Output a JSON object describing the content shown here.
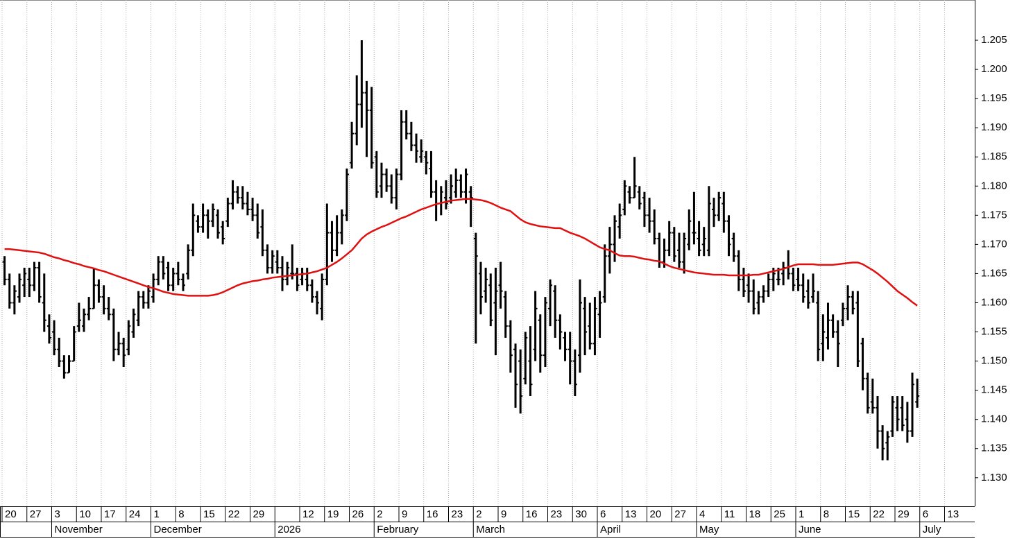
{
  "chart_data": {
    "type": "ohlc",
    "bar_color": "#000000",
    "grid": true,
    "ylim": [
      1.1251,
      1.2119
    ],
    "yticks": [
      {
        "value": 1.13,
        "label": "1.130"
      },
      1.135,
      {
        "value": 1.14,
        "label": "1.140"
      },
      1.145,
      {
        "value": 1.15,
        "label": "1.150"
      },
      1.155,
      {
        "value": 1.16,
        "label": "1.160"
      },
      1.165,
      {
        "value": 1.17,
        "label": "1.170"
      },
      1.175,
      {
        "value": 1.18,
        "label": "1.180"
      },
      1.185,
      {
        "value": 1.19,
        "label": "1.190"
      },
      1.195,
      {
        "value": 1.2,
        "label": "1.200"
      },
      1.205
    ],
    "week_labels": [
      "20",
      "27",
      "3",
      "10",
      "17",
      "24",
      "1",
      "8",
      "15",
      "22",
      "29",
      null,
      "12",
      "19",
      "26",
      "2",
      "9",
      "16",
      "23",
      "2",
      "9",
      "16",
      "23",
      "30",
      "6",
      "13",
      "20",
      "27",
      "4",
      "11",
      "18",
      "25",
      "1",
      "8",
      "15",
      "22",
      "29",
      "6",
      "13"
    ],
    "month_labels": [
      null,
      null,
      "November",
      null,
      null,
      null,
      "December",
      null,
      null,
      null,
      null,
      "2026",
      null,
      null,
      null,
      "February",
      null,
      null,
      null,
      "March",
      null,
      null,
      null,
      null,
      "April",
      null,
      null,
      null,
      "May",
      null,
      null,
      null,
      "June",
      null,
      null,
      null,
      null,
      "July",
      null
    ],
    "open": [
      1.167,
      1.164,
      1.16,
      1.161,
      1.163,
      1.164,
      1.163,
      1.166,
      1.16,
      1.156,
      1.155,
      1.152,
      1.15,
      1.148,
      1.15,
      1.156,
      1.156,
      1.158,
      1.159,
      1.163,
      1.161,
      1.159,
      1.158,
      1.152,
      1.153,
      1.152,
      1.155,
      1.157,
      1.161,
      1.16,
      1.161,
      1.164,
      1.167,
      1.166,
      1.163,
      1.165,
      1.164,
      1.165,
      1.169,
      1.174,
      1.173,
      1.175,
      1.174,
      1.175,
      1.173,
      1.174,
      1.177,
      1.179,
      1.178,
      1.177,
      1.176,
      1.175,
      1.173,
      1.169,
      1.166,
      1.167,
      1.166,
      1.164,
      1.165,
      1.165,
      1.164,
      1.164,
      1.163,
      1.161,
      1.159,
      1.164,
      1.172,
      1.169,
      1.172,
      1.175,
      1.184,
      1.189,
      1.194,
      1.196,
      1.193,
      1.185,
      1.18,
      1.182,
      1.18,
      1.178,
      1.182,
      1.191,
      1.189,
      1.187,
      1.185,
      1.185,
      1.183,
      1.179,
      1.177,
      1.178,
      1.178,
      1.179,
      1.181,
      1.179,
      1.179,
      1.171,
      1.165,
      1.162,
      1.163,
      1.16,
      1.163,
      1.161,
      1.156,
      1.152,
      1.15,
      1.147,
      1.15,
      1.152,
      1.157,
      1.151,
      1.159,
      1.162,
      1.157,
      1.154,
      1.152,
      1.15,
      1.151,
      1.159,
      1.156,
      1.153,
      1.158,
      1.161,
      1.168,
      1.17,
      1.173,
      1.176,
      1.179,
      1.178,
      1.179,
      1.178,
      1.175,
      1.174,
      1.171,
      1.167,
      1.169,
      1.172,
      1.169,
      1.167,
      1.17,
      1.172,
      1.171,
      1.17,
      1.169,
      1.176,
      1.175,
      1.177,
      1.174,
      1.171,
      1.168,
      1.164,
      1.163,
      1.162,
      1.16,
      1.161,
      1.162,
      1.164,
      1.164,
      1.165,
      1.166,
      1.165,
      1.164,
      1.163,
      1.162,
      1.161,
      1.16,
      1.153,
      1.154,
      1.157,
      1.155,
      1.157,
      1.159,
      1.161,
      1.16,
      1.153,
      1.147,
      1.143,
      1.142,
      1.138,
      1.136,
      1.138,
      1.142,
      1.142,
      1.14,
      1.138,
      1.143
    ],
    "high": [
      1.168,
      1.165,
      1.163,
      1.165,
      1.166,
      1.166,
      1.167,
      1.167,
      1.165,
      1.158,
      1.157,
      1.154,
      1.151,
      1.151,
      1.156,
      1.16,
      1.159,
      1.161,
      1.166,
      1.164,
      1.163,
      1.161,
      1.159,
      1.155,
      1.154,
      1.157,
      1.159,
      1.162,
      1.162,
      1.163,
      1.165,
      1.168,
      1.168,
      1.167,
      1.166,
      1.167,
      1.165,
      1.17,
      1.177,
      1.175,
      1.177,
      1.176,
      1.177,
      1.176,
      1.174,
      1.178,
      1.181,
      1.18,
      1.18,
      1.179,
      1.178,
      1.177,
      1.176,
      1.17,
      1.169,
      1.169,
      1.168,
      1.167,
      1.17,
      1.166,
      1.166,
      1.166,
      1.164,
      1.162,
      1.165,
      1.177,
      1.174,
      1.175,
      1.176,
      1.183,
      1.191,
      1.199,
      1.205,
      1.198,
      1.197,
      1.186,
      1.184,
      1.183,
      1.182,
      1.183,
      1.193,
      1.193,
      1.191,
      1.189,
      1.188,
      1.186,
      1.186,
      1.181,
      1.18,
      1.181,
      1.182,
      1.183,
      1.182,
      1.183,
      1.18,
      1.172,
      1.167,
      1.166,
      1.165,
      1.166,
      1.167,
      1.162,
      1.157,
      1.153,
      1.152,
      1.155,
      1.156,
      1.162,
      1.158,
      1.161,
      1.164,
      1.163,
      1.158,
      1.155,
      1.155,
      1.152,
      1.164,
      1.161,
      1.16,
      1.161,
      1.162,
      1.17,
      1.173,
      1.175,
      1.177,
      1.181,
      1.18,
      1.185,
      1.18,
      1.179,
      1.178,
      1.176,
      1.172,
      1.171,
      1.174,
      1.173,
      1.172,
      1.172,
      1.176,
      1.179,
      1.174,
      1.173,
      1.18,
      1.178,
      1.179,
      1.179,
      1.175,
      1.172,
      1.169,
      1.166,
      1.165,
      1.164,
      1.162,
      1.163,
      1.165,
      1.166,
      1.166,
      1.167,
      1.169,
      1.166,
      1.166,
      1.165,
      1.164,
      1.165,
      1.162,
      1.158,
      1.16,
      1.158,
      1.157,
      1.16,
      1.163,
      1.162,
      1.162,
      1.154,
      1.148,
      1.147,
      1.144,
      1.139,
      1.138,
      1.144,
      1.144,
      1.144,
      1.143,
      1.148,
      1.147
    ],
    "low": [
      1.163,
      1.159,
      1.158,
      1.16,
      1.161,
      1.161,
      1.162,
      1.16,
      1.155,
      1.153,
      1.151,
      1.149,
      1.147,
      1.148,
      1.15,
      1.155,
      1.155,
      1.157,
      1.159,
      1.16,
      1.158,
      1.157,
      1.15,
      1.151,
      1.149,
      1.151,
      1.154,
      1.156,
      1.159,
      1.159,
      1.16,
      1.163,
      1.164,
      1.162,
      1.162,
      1.163,
      1.162,
      1.164,
      1.168,
      1.172,
      1.172,
      1.171,
      1.173,
      1.171,
      1.17,
      1.173,
      1.176,
      1.177,
      1.176,
      1.175,
      1.174,
      1.171,
      1.168,
      1.165,
      1.165,
      1.165,
      1.162,
      1.163,
      1.164,
      1.162,
      1.163,
      1.162,
      1.16,
      1.158,
      1.157,
      1.163,
      1.167,
      1.168,
      1.17,
      1.174,
      1.183,
      1.187,
      1.19,
      1.185,
      1.183,
      1.178,
      1.178,
      1.179,
      1.177,
      1.176,
      1.181,
      1.188,
      1.186,
      1.184,
      1.184,
      1.182,
      1.178,
      1.174,
      1.175,
      1.176,
      1.177,
      1.178,
      1.178,
      1.177,
      1.173,
      1.153,
      1.158,
      1.16,
      1.156,
      1.151,
      1.159,
      1.154,
      1.148,
      1.142,
      1.141,
      1.146,
      1.144,
      1.15,
      1.148,
      1.149,
      1.156,
      1.154,
      1.152,
      1.15,
      1.146,
      1.144,
      1.148,
      1.151,
      1.152,
      1.151,
      1.154,
      1.16,
      1.165,
      1.167,
      1.171,
      1.175,
      1.177,
      1.178,
      1.176,
      1.173,
      1.172,
      1.17,
      1.166,
      1.166,
      1.168,
      1.167,
      1.166,
      1.165,
      1.169,
      1.17,
      1.168,
      1.168,
      1.168,
      1.173,
      1.174,
      1.172,
      1.168,
      1.167,
      1.162,
      1.161,
      1.16,
      1.158,
      1.158,
      1.16,
      1.161,
      1.162,
      1.163,
      1.163,
      1.164,
      1.162,
      1.162,
      1.16,
      1.159,
      1.16,
      1.15,
      1.15,
      1.152,
      1.154,
      1.149,
      1.156,
      1.157,
      1.158,
      1.149,
      1.145,
      1.141,
      1.141,
      1.135,
      1.133,
      1.133,
      1.137,
      1.138,
      1.138,
      1.136,
      1.137,
      1.142
    ],
    "close": [
      1.164,
      1.16,
      1.162,
      1.164,
      1.165,
      1.163,
      1.166,
      1.161,
      1.157,
      1.154,
      1.152,
      1.15,
      1.148,
      1.15,
      1.155,
      1.157,
      1.158,
      1.159,
      1.163,
      1.161,
      1.159,
      1.158,
      1.152,
      1.153,
      1.151,
      1.156,
      1.158,
      1.161,
      1.16,
      1.162,
      1.164,
      1.167,
      1.165,
      1.163,
      1.165,
      1.164,
      1.163,
      1.169,
      1.175,
      1.173,
      1.175,
      1.174,
      1.176,
      1.172,
      1.171,
      1.177,
      1.179,
      1.178,
      1.177,
      1.176,
      1.175,
      1.172,
      1.169,
      1.166,
      1.168,
      1.166,
      1.164,
      1.166,
      1.165,
      1.163,
      1.165,
      1.163,
      1.161,
      1.16,
      1.164,
      1.172,
      1.169,
      1.172,
      1.175,
      1.182,
      1.189,
      1.194,
      1.196,
      1.193,
      1.184,
      1.179,
      1.182,
      1.18,
      1.178,
      1.182,
      1.191,
      1.189,
      1.187,
      1.186,
      1.186,
      1.184,
      1.179,
      1.177,
      1.179,
      1.177,
      1.18,
      1.181,
      1.179,
      1.182,
      1.178,
      1.168,
      1.161,
      1.164,
      1.157,
      1.162,
      1.162,
      1.156,
      1.151,
      1.146,
      1.144,
      1.154,
      1.146,
      1.159,
      1.151,
      1.16,
      1.163,
      1.157,
      1.155,
      1.152,
      1.15,
      1.146,
      1.16,
      1.155,
      1.153,
      1.159,
      1.16,
      1.168,
      1.17,
      1.174,
      1.175,
      1.18,
      1.178,
      1.18,
      1.177,
      1.175,
      1.174,
      1.171,
      1.167,
      1.169,
      1.172,
      1.168,
      1.167,
      1.171,
      1.174,
      1.172,
      1.169,
      1.171,
      1.177,
      1.175,
      1.178,
      1.174,
      1.17,
      1.168,
      1.164,
      1.162,
      1.162,
      1.159,
      1.161,
      1.162,
      1.164,
      1.165,
      1.164,
      1.166,
      1.165,
      1.163,
      1.163,
      1.161,
      1.16,
      1.162,
      1.152,
      1.155,
      1.157,
      1.155,
      1.153,
      1.159,
      1.161,
      1.159,
      1.15,
      1.147,
      1.142,
      1.142,
      1.138,
      1.135,
      1.137,
      1.143,
      1.14,
      1.139,
      1.138,
      1.146,
      1.144
    ],
    "moving_average": {
      "color": "#e01010",
      "values": [
        1.1692,
        1.1692,
        1.1691,
        1.169,
        1.1689,
        1.1688,
        1.1687,
        1.1686,
        1.1684,
        1.1681,
        1.1678,
        1.1676,
        1.1673,
        1.1671,
        1.1668,
        1.1666,
        1.1663,
        1.1661,
        1.1659,
        1.1656,
        1.1654,
        1.1651,
        1.1648,
        1.1645,
        1.1642,
        1.1639,
        1.1636,
        1.1633,
        1.163,
        1.1627,
        1.1625,
        1.1622,
        1.1619,
        1.1617,
        1.1615,
        1.1614,
        1.1613,
        1.1612,
        1.1612,
        1.1612,
        1.1612,
        1.1612,
        1.1613,
        1.1615,
        1.1618,
        1.1622,
        1.1626,
        1.163,
        1.1633,
        1.1635,
        1.1637,
        1.1638,
        1.164,
        1.1641,
        1.1643,
        1.1644,
        1.1645,
        1.1646,
        1.1647,
        1.1648,
        1.1649,
        1.165,
        1.1652,
        1.1654,
        1.1657,
        1.166,
        1.1665,
        1.167,
        1.1676,
        1.1683,
        1.169,
        1.17,
        1.171,
        1.1717,
        1.1722,
        1.1726,
        1.173,
        1.1733,
        1.1737,
        1.1741,
        1.1745,
        1.1748,
        1.1752,
        1.1756,
        1.176,
        1.1763,
        1.1766,
        1.1769,
        1.1771,
        1.1773,
        1.1775,
        1.1776,
        1.1777,
        1.1778,
        1.1778,
        1.1777,
        1.1776,
        1.1774,
        1.1771,
        1.1767,
        1.1763,
        1.176,
        1.1757,
        1.175,
        1.1743,
        1.1738,
        1.1735,
        1.1733,
        1.1731,
        1.173,
        1.1729,
        1.1728,
        1.1728,
        1.1724,
        1.172,
        1.1717,
        1.1714,
        1.171,
        1.1705,
        1.17,
        1.1695,
        1.1692,
        1.169,
        1.1685,
        1.1681,
        1.168,
        1.168,
        1.1679,
        1.1677,
        1.1675,
        1.1674,
        1.1672,
        1.1671,
        1.1667,
        1.1663,
        1.166,
        1.1658,
        1.1656,
        1.1654,
        1.1652,
        1.1651,
        1.165,
        1.1649,
        1.1648,
        1.1648,
        1.1648,
        1.1647,
        1.1647,
        1.1647,
        1.1647,
        1.1647,
        1.1648,
        1.1648,
        1.165,
        1.1652,
        1.1654,
        1.1656,
        1.1658,
        1.1661,
        1.1664,
        1.1666,
        1.1666,
        1.1666,
        1.1666,
        1.1665,
        1.1665,
        1.1665,
        1.1665,
        1.1666,
        1.1667,
        1.1668,
        1.1669,
        1.1669,
        1.1666,
        1.1661,
        1.1656,
        1.165,
        1.1643,
        1.1636,
        1.1628,
        1.162,
        1.1614,
        1.1608,
        1.1601,
        1.1595
      ]
    }
  }
}
